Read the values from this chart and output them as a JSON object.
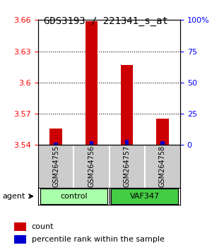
{
  "title": "GDS3193 / 221341_s_at",
  "samples": [
    "GSM264755",
    "GSM264756",
    "GSM264757",
    "GSM264758"
  ],
  "count_values": [
    3.556,
    3.659,
    3.617,
    3.565
  ],
  "percentile_values": [
    2,
    3,
    4,
    3
  ],
  "ylim_left": [
    3.54,
    3.66
  ],
  "ylim_right": [
    0,
    100
  ],
  "yticks_left": [
    3.54,
    3.57,
    3.6,
    3.63,
    3.66
  ],
  "yticks_right": [
    0,
    25,
    50,
    75,
    100
  ],
  "ytick_labels_right": [
    "0",
    "25",
    "50",
    "75",
    "100%"
  ],
  "bar_color": "#cc0000",
  "percentile_color": "#0000cc",
  "groups": [
    {
      "label": "control",
      "indices": [
        0,
        1
      ],
      "color": "#aaffaa"
    },
    {
      "label": "VAF347",
      "indices": [
        2,
        3
      ],
      "color": "#44cc44"
    }
  ],
  "agent_label": "agent",
  "legend_count_label": "count",
  "legend_percentile_label": "percentile rank within the sample",
  "background_color": "#ffffff",
  "plot_bg_color": "#ffffff",
  "sample_box_color": "#cccccc"
}
